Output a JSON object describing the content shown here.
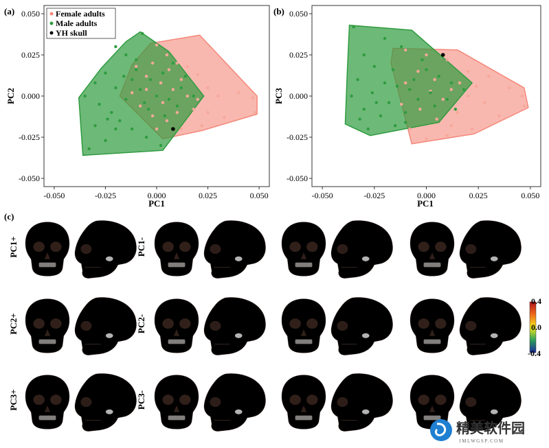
{
  "panel_labels": {
    "a": "(a)",
    "b": "(b)",
    "c": "(c)"
  },
  "legend": [
    {
      "label": "Female adults",
      "color": "#f4887a"
    },
    {
      "label": "Male adults",
      "color": "#2f9b3f"
    },
    {
      "label": "YH skull",
      "color": "#000000"
    }
  ],
  "chart_data": [
    {
      "type": "scatter",
      "xlabel": "PC1",
      "ylabel": "PC2",
      "xlim": [
        -0.055,
        0.055
      ],
      "ylim": [
        -0.055,
        0.055
      ],
      "ticks": [
        "-0.050",
        "-0.025",
        "0.000",
        "0.025",
        "0.050"
      ],
      "tick_values": [
        -0.05,
        -0.025,
        0,
        0.025,
        0.05
      ],
      "hulls": {
        "female": [
          [
            -0.003,
            0.032
          ],
          [
            0.021,
            0.037
          ],
          [
            0.049,
            0.0
          ],
          [
            0.049,
            -0.011
          ],
          [
            0.022,
            -0.021
          ],
          [
            0.003,
            -0.026
          ],
          [
            -0.018,
            0.0
          ],
          [
            -0.012,
            0.019
          ]
        ],
        "male": [
          [
            -0.008,
            0.039
          ],
          [
            0.006,
            0.027
          ],
          [
            0.023,
            0.0
          ],
          [
            0.003,
            -0.033
          ],
          [
            -0.036,
            -0.036
          ],
          [
            -0.038,
            -0.001
          ],
          [
            -0.027,
            0.017
          ],
          [
            -0.015,
            0.033
          ]
        ]
      },
      "series": [
        {
          "name": "Female adults",
          "points": [
            [
              0.0,
              0.031
            ],
            [
              0.005,
              0.025
            ],
            [
              0.01,
              0.02
            ],
            [
              0.015,
              0.018
            ],
            [
              0.02,
              0.013
            ],
            [
              0.025,
              0.005
            ],
            [
              0.03,
              0.0
            ],
            [
              0.04,
              0.002
            ],
            [
              0.047,
              -0.001
            ],
            [
              0.048,
              -0.01
            ],
            [
              0.033,
              -0.013
            ],
            [
              0.022,
              -0.018
            ],
            [
              0.012,
              -0.02
            ],
            [
              0.005,
              -0.015
            ],
            [
              -0.002,
              -0.012
            ],
            [
              -0.008,
              -0.006
            ],
            [
              -0.012,
              0.002
            ],
            [
              -0.005,
              0.012
            ],
            [
              0.002,
              0.008
            ],
            [
              0.008,
              0.004
            ],
            [
              0.015,
              0.0
            ],
            [
              0.018,
              -0.008
            ],
            [
              0.01,
              -0.01
            ],
            [
              0.003,
              -0.004
            ],
            [
              -0.005,
              0.004
            ],
            [
              0.012,
              0.01
            ],
            [
              0.006,
              0.016
            ],
            [
              -0.01,
              0.018
            ],
            [
              0.025,
              -0.01
            ],
            [
              0.02,
              -0.002
            ],
            [
              -0.002,
              0.02
            ],
            [
              0.0,
              -0.02
            ]
          ]
        },
        {
          "name": "Male adults",
          "points": [
            [
              -0.007,
              0.038
            ],
            [
              -0.02,
              0.03
            ],
            [
              -0.015,
              0.025
            ],
            [
              -0.01,
              0.022
            ],
            [
              -0.025,
              0.014
            ],
            [
              -0.03,
              0.008
            ],
            [
              -0.035,
              0.0
            ],
            [
              -0.028,
              -0.005
            ],
            [
              -0.022,
              -0.01
            ],
            [
              -0.018,
              -0.015
            ],
            [
              -0.012,
              -0.02
            ],
            [
              -0.005,
              -0.025
            ],
            [
              -0.025,
              -0.027
            ],
            [
              -0.033,
              -0.032
            ],
            [
              0.002,
              -0.03
            ],
            [
              -0.015,
              -0.002
            ],
            [
              -0.008,
              0.004
            ],
            [
              -0.003,
              0.01
            ],
            [
              0.003,
              0.014
            ],
            [
              0.008,
              0.02
            ],
            [
              0.012,
              0.005
            ],
            [
              0.018,
              0.0
            ],
            [
              0.01,
              -0.006
            ],
            [
              0.004,
              -0.012
            ],
            [
              -0.004,
              -0.008
            ],
            [
              -0.02,
              0.005
            ],
            [
              -0.016,
              0.012
            ],
            [
              -0.01,
              0.016
            ],
            [
              -0.03,
              -0.018
            ],
            [
              -0.02,
              -0.02
            ],
            [
              -0.012,
              0.01
            ],
            [
              -0.006,
              -0.004
            ],
            [
              0.0,
              0.0
            ],
            [
              0.006,
              -0.002
            ],
            [
              0.014,
              0.012
            ],
            [
              -0.024,
              -0.014
            ]
          ]
        },
        {
          "name": "YH skull",
          "points": [
            [
              0.008,
              -0.02
            ]
          ]
        }
      ]
    },
    {
      "type": "scatter",
      "xlabel": "PC1",
      "ylabel": "PC3",
      "xlim": [
        -0.055,
        0.055
      ],
      "ylim": [
        -0.055,
        0.055
      ],
      "ticks": [
        "-0.050",
        "-0.025",
        "0.000",
        "0.025",
        "0.050"
      ],
      "tick_values": [
        -0.05,
        -0.025,
        0,
        0.025,
        0.05
      ],
      "hulls": {
        "female": [
          [
            -0.016,
            0.029
          ],
          [
            0.015,
            0.028
          ],
          [
            0.047,
            0.005
          ],
          [
            0.049,
            -0.007
          ],
          [
            0.023,
            -0.023
          ],
          [
            -0.007,
            -0.029
          ],
          [
            -0.017,
            0.02
          ]
        ],
        "male": [
          [
            -0.037,
            0.043
          ],
          [
            -0.007,
            0.04
          ],
          [
            0.022,
            0.008
          ],
          [
            0.006,
            -0.016
          ],
          [
            -0.027,
            -0.024
          ],
          [
            -0.039,
            -0.017
          ],
          [
            -0.038,
            0.015
          ]
        ]
      },
      "series": [
        {
          "name": "Female adults",
          "points": [
            [
              -0.01,
              0.028
            ],
            [
              0.0,
              0.025
            ],
            [
              0.01,
              0.022
            ],
            [
              0.02,
              0.015
            ],
            [
              0.03,
              0.012
            ],
            [
              0.04,
              0.005
            ],
            [
              0.046,
              0.0
            ],
            [
              0.047,
              -0.006
            ],
            [
              0.035,
              -0.012
            ],
            [
              0.022,
              -0.02
            ],
            [
              0.01,
              -0.024
            ],
            [
              0.0,
              -0.026
            ],
            [
              -0.008,
              -0.02
            ],
            [
              -0.012,
              -0.005
            ],
            [
              -0.01,
              0.008
            ],
            [
              -0.004,
              0.015
            ],
            [
              0.004,
              0.01
            ],
            [
              0.012,
              0.004
            ],
            [
              0.02,
              0.0
            ],
            [
              0.028,
              -0.004
            ],
            [
              0.015,
              -0.01
            ],
            [
              0.005,
              -0.014
            ],
            [
              -0.003,
              -0.008
            ],
            [
              0.002,
              0.003
            ],
            [
              0.008,
              -0.002
            ],
            [
              0.016,
              0.008
            ],
            [
              0.024,
              0.006
            ],
            [
              0.012,
              -0.018
            ]
          ]
        },
        {
          "name": "Male adults",
          "points": [
            [
              -0.035,
              0.042
            ],
            [
              -0.02,
              0.035
            ],
            [
              -0.012,
              0.03
            ],
            [
              -0.03,
              0.025
            ],
            [
              -0.025,
              0.018
            ],
            [
              -0.033,
              0.01
            ],
            [
              -0.036,
              0.0
            ],
            [
              -0.03,
              -0.008
            ],
            [
              -0.022,
              -0.012
            ],
            [
              -0.028,
              -0.02
            ],
            [
              -0.015,
              -0.018
            ],
            [
              -0.01,
              -0.01
            ],
            [
              -0.018,
              -0.004
            ],
            [
              -0.014,
              0.006
            ],
            [
              -0.006,
              0.01
            ],
            [
              0.0,
              0.016
            ],
            [
              0.006,
              0.012
            ],
            [
              0.012,
              0.008
            ],
            [
              0.018,
              0.004
            ],
            [
              0.01,
              -0.002
            ],
            [
              0.004,
              -0.006
            ],
            [
              -0.004,
              -0.002
            ],
            [
              -0.008,
              0.004
            ],
            [
              -0.02,
              0.008
            ],
            [
              -0.024,
              -0.004
            ],
            [
              -0.016,
              0.016
            ],
            [
              -0.002,
              0.022
            ],
            [
              0.014,
              -0.008
            ],
            [
              -0.032,
              -0.014
            ],
            [
              -0.026,
              0.002
            ],
            [
              -0.01,
              -0.016
            ],
            [
              0.002,
              0.002
            ]
          ]
        },
        {
          "name": "YH skull",
          "points": [
            [
              0.008,
              0.025
            ]
          ]
        }
      ]
    }
  ],
  "figure_c": {
    "rows": [
      {
        "left": "PC1+",
        "right": "PC1-"
      },
      {
        "left": "PC2+",
        "right": "PC2-"
      },
      {
        "left": "PC3+",
        "right": "PC3-"
      }
    ],
    "colorbar": {
      "max": "0.4",
      "mid": "0.0",
      "min": "-0.4"
    }
  },
  "watermark": {
    "title": "精美软件园",
    "url": "JMLWGSP.COM"
  }
}
